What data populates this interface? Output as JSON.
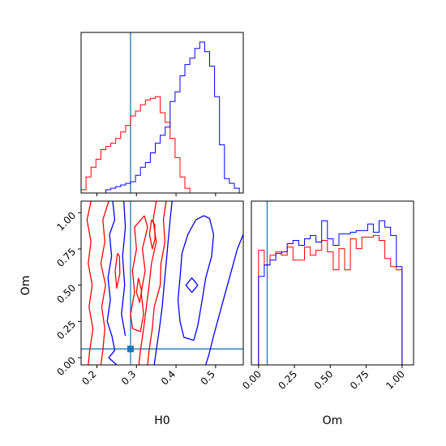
{
  "chart_data": {
    "type": "corner",
    "parameters": [
      "H0",
      "Om"
    ],
    "truth": {
      "H0": 0.285,
      "Om": 0.06
    },
    "colors": {
      "red_sample": "#ff0000",
      "blue_sample": "#0000ff",
      "truth_line": "#1f77b4",
      "axes": "#000000"
    },
    "panels": [
      {
        "id": "h0-marginal",
        "type": "histogram",
        "xlabel": "",
        "ylabel": "",
        "xlim": [
          0.16,
          0.57
        ],
        "ylim": [
          0,
          1.0
        ],
        "bin_edges": [
          0.16,
          0.1725,
          0.185,
          0.1975,
          0.21,
          0.2225,
          0.235,
          0.2475,
          0.26,
          0.2725,
          0.285,
          0.2975,
          0.31,
          0.3225,
          0.335,
          0.3475,
          0.36,
          0.3725,
          0.385,
          0.3975,
          0.41,
          0.4225,
          0.435,
          0.4475,
          0.46,
          0.4725,
          0.485,
          0.4975,
          0.51,
          0.5225,
          0.535,
          0.5475,
          0.56
        ],
        "series": [
          {
            "color": "red",
            "values": [
              0.02,
              0.1,
              0.16,
              0.21,
              0.27,
              0.29,
              0.31,
              0.34,
              0.38,
              0.42,
              0.48,
              0.51,
              0.55,
              0.58,
              0.59,
              0.6,
              0.5,
              0.44,
              0.34,
              0.22,
              0.1,
              0.03,
              0.0,
              0.0,
              0.0,
              0.0,
              0.0,
              0.0,
              0.0,
              0.0,
              0.0,
              0.0
            ]
          },
          {
            "color": "blue",
            "values": [
              0.0,
              0.0,
              0.0,
              0.0,
              0.0,
              0.02,
              0.03,
              0.04,
              0.05,
              0.06,
              0.07,
              0.11,
              0.16,
              0.19,
              0.25,
              0.31,
              0.36,
              0.41,
              0.57,
              0.63,
              0.73,
              0.8,
              0.84,
              0.9,
              0.94,
              0.88,
              0.79,
              0.6,
              0.3,
              0.09,
              0.06,
              0.03
            ]
          }
        ]
      },
      {
        "id": "h0-om-joint",
        "type": "contour",
        "xlabel": "H0",
        "ylabel": "Om",
        "xlim": [
          0.16,
          0.57
        ],
        "ylim": [
          -0.05,
          1.08
        ],
        "xticks": [
          "0.2",
          "0.3",
          "0.4",
          "0.5"
        ],
        "yticks": [
          "0.00",
          "0.25",
          "0.50",
          "0.75",
          "1.00"
        ],
        "series": [
          {
            "color": "red",
            "contours": [
              [
                [
                  0.185,
                  1.08
                ],
                [
                  0.175,
                  0.95
                ],
                [
                  0.185,
                  0.8
                ],
                [
                  0.178,
                  0.65
                ],
                [
                  0.188,
                  0.5
                ],
                [
                  0.18,
                  0.35
                ],
                [
                  0.19,
                  0.2
                ],
                [
                  0.182,
                  0.05
                ],
                [
                  0.178,
                  -0.05
                ]
              ],
              [
                [
                  0.375,
                  1.08
                ],
                [
                  0.368,
                  0.95
                ],
                [
                  0.372,
                  0.8
                ],
                [
                  0.362,
                  0.65
                ],
                [
                  0.36,
                  0.5
                ],
                [
                  0.345,
                  0.35
                ],
                [
                  0.34,
                  0.2
                ],
                [
                  0.332,
                  0.05
                ],
                [
                  0.328,
                  -0.05
                ]
              ],
              [
                [
                  0.23,
                  1.08
                ],
                [
                  0.215,
                  0.95
                ],
                [
                  0.22,
                  0.8
                ],
                [
                  0.21,
                  0.65
                ],
                [
                  0.222,
                  0.5
                ],
                [
                  0.212,
                  0.35
                ],
                [
                  0.22,
                  0.2
                ],
                [
                  0.215,
                  0.05
                ],
                [
                  0.21,
                  -0.05
                ]
              ],
              [
                [
                  0.35,
                  1.08
                ],
                [
                  0.342,
                  0.95
                ],
                [
                  0.35,
                  0.8
                ],
                [
                  0.338,
                  0.65
                ],
                [
                  0.332,
                  0.5
                ],
                [
                  0.325,
                  0.35
                ],
                [
                  0.318,
                  0.2
                ],
                [
                  0.31,
                  0.05
                ],
                [
                  0.306,
                  -0.05
                ]
              ],
              [
                [
                  0.32,
                  0.98
                ],
                [
                  0.295,
                  0.9
                ],
                [
                  0.3,
                  0.75
                ],
                [
                  0.29,
                  0.6
                ],
                [
                  0.295,
                  0.45
                ],
                [
                  0.285,
                  0.3
                ],
                [
                  0.29,
                  0.2
                ],
                [
                  0.31,
                  0.18
                ],
                [
                  0.318,
                  0.3
                ],
                [
                  0.312,
                  0.45
                ],
                [
                  0.322,
                  0.6
                ],
                [
                  0.315,
                  0.75
                ],
                [
                  0.328,
                  0.9
                ],
                [
                  0.32,
                  0.98
                ]
              ],
              [
                [
                  0.338,
                  0.95
                ],
                [
                  0.333,
                  0.85
                ],
                [
                  0.34,
                  0.75
                ],
                [
                  0.347,
                  0.82
                ],
                [
                  0.346,
                  0.92
                ],
                [
                  0.338,
                  0.95
                ]
              ],
              [
                [
                  0.252,
                  0.72
                ],
                [
                  0.246,
                  0.6
                ],
                [
                  0.25,
                  0.48
                ],
                [
                  0.258,
                  0.58
                ],
                [
                  0.257,
                  0.7
                ],
                [
                  0.252,
                  0.72
                ]
              ],
              [
                [
                  0.305,
                  0.55
                ],
                [
                  0.3,
                  0.45
                ],
                [
                  0.308,
                  0.38
                ],
                [
                  0.313,
                  0.46
                ],
                [
                  0.305,
                  0.55
                ]
              ]
            ]
          },
          {
            "color": "blue",
            "contours": [
              [
                [
                  0.24,
                  1.08
                ],
                [
                  0.245,
                  0.95
                ],
                [
                  0.232,
                  0.85
                ],
                [
                  0.237,
                  0.7
                ],
                [
                  0.228,
                  0.55
                ],
                [
                  0.234,
                  0.4
                ],
                [
                  0.226,
                  0.25
                ],
                [
                  0.238,
                  0.15
                ],
                [
                  0.245,
                  0.05
                ],
                [
                  0.23,
                  0.0
                ],
                [
                  0.25,
                  -0.05
                ]
              ],
              [
                [
                  0.268,
                  1.08
                ],
                [
                  0.272,
                  0.9
                ],
                [
                  0.265,
                  0.7
                ],
                [
                  0.27,
                  0.5
                ],
                [
                  0.262,
                  0.3
                ],
                [
                  0.272,
                  0.15
                ]
              ],
              [
                [
                  0.39,
                  1.08
                ],
                [
                  0.385,
                  0.95
                ],
                [
                  0.38,
                  0.8
                ],
                [
                  0.375,
                  0.65
                ],
                [
                  0.37,
                  0.5
                ],
                [
                  0.365,
                  0.35
                ],
                [
                  0.358,
                  0.2
                ],
                [
                  0.35,
                  0.05
                ],
                [
                  0.345,
                  -0.05
                ]
              ],
              [
                [
                  0.57,
                  0.85
                ],
                [
                  0.555,
                  0.75
                ],
                [
                  0.54,
                  0.6
                ],
                [
                  0.525,
                  0.45
                ],
                [
                  0.51,
                  0.3
                ],
                [
                  0.495,
                  0.15
                ],
                [
                  0.483,
                  0.02
                ],
                [
                  0.475,
                  -0.05
                ]
              ],
              [
                [
                  0.47,
                  0.98
                ],
                [
                  0.45,
                  0.95
                ],
                [
                  0.43,
                  0.85
                ],
                [
                  0.415,
                  0.72
                ],
                [
                  0.41,
                  0.55
                ],
                [
                  0.405,
                  0.4
                ],
                [
                  0.41,
                  0.25
                ],
                [
                  0.42,
                  0.14
                ],
                [
                  0.445,
                  0.12
                ],
                [
                  0.455,
                  0.22
                ],
                [
                  0.465,
                  0.38
                ],
                [
                  0.475,
                  0.55
                ],
                [
                  0.49,
                  0.7
                ],
                [
                  0.495,
                  0.85
                ],
                [
                  0.485,
                  0.96
                ],
                [
                  0.47,
                  0.98
                ]
              ],
              [
                [
                  0.455,
                  0.5
                ],
                [
                  0.44,
                  0.55
                ],
                [
                  0.425,
                  0.5
                ],
                [
                  0.44,
                  0.45
                ],
                [
                  0.455,
                  0.5
                ]
              ]
            ]
          }
        ]
      },
      {
        "id": "om-marginal",
        "type": "histogram",
        "xlabel": "Om",
        "ylabel": "",
        "xlim": [
          -0.05,
          1.08
        ],
        "ylim": [
          0,
          1.0
        ],
        "xticks": [
          "0.00",
          "0.25",
          "0.50",
          "0.75",
          "1.00"
        ],
        "bin_edges": [
          0.0,
          0.04,
          0.08,
          0.12,
          0.16,
          0.2,
          0.24,
          0.28,
          0.32,
          0.36,
          0.4,
          0.44,
          0.48,
          0.52,
          0.56,
          0.6,
          0.64,
          0.68,
          0.72,
          0.76,
          0.8,
          0.84,
          0.88,
          0.92,
          0.96,
          1.0
        ],
        "series": [
          {
            "color": "red",
            "values": [
              0.7,
              0.61,
              0.67,
              0.69,
              0.67,
              0.72,
              0.64,
              0.64,
              0.72,
              0.67,
              0.7,
              0.76,
              0.69,
              0.58,
              0.71,
              0.58,
              0.77,
              0.71,
              0.78,
              0.78,
              0.79,
              0.76,
              0.65,
              0.6,
              0.58
            ]
          },
          {
            "color": "blue",
            "values": [
              0.54,
              0.61,
              0.64,
              0.68,
              0.69,
              0.74,
              0.76,
              0.73,
              0.77,
              0.79,
              0.75,
              0.88,
              0.77,
              0.73,
              0.8,
              0.8,
              0.81,
              0.82,
              0.82,
              0.86,
              0.81,
              0.88,
              0.84,
              0.79,
              0.6
            ]
          }
        ]
      }
    ]
  }
}
